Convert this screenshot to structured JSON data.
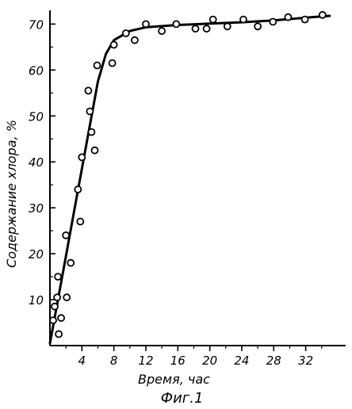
{
  "chart_data": {
    "type": "scatter",
    "xlabel": "Время, час",
    "ylabel": "Содержание хлора, %",
    "caption": "Фиг.1",
    "xlim": [
      0,
      37
    ],
    "ylim": [
      0,
      73
    ],
    "x_ticks": [
      4,
      8,
      12,
      16,
      20,
      24,
      28,
      32
    ],
    "y_ticks": [
      10,
      20,
      30,
      40,
      50,
      60,
      70
    ],
    "grid": false,
    "series": [
      {
        "kind": "points",
        "x": [
          0.4,
          0.6,
          0.9,
          1.0,
          1.1,
          1.4,
          2.0,
          2.1,
          2.6,
          3.5,
          3.8,
          4.0,
          4.8,
          5.0,
          5.2,
          5.6,
          5.9,
          7.8,
          8.0,
          9.5,
          10.6,
          12.0,
          14.0,
          15.8,
          18.2,
          19.6,
          20.4,
          22.2,
          24.2,
          26.0,
          27.9,
          29.8,
          31.9,
          34.1
        ],
        "y": [
          5.5,
          8.5,
          10.5,
          15.0,
          2.5,
          6.0,
          24.0,
          10.5,
          18.0,
          34.0,
          27.0,
          41.0,
          55.5,
          51.0,
          46.5,
          42.5,
          61.0,
          61.5,
          65.5,
          68.0,
          66.5,
          70.0,
          68.5,
          70.0,
          69.0,
          69.0,
          71.0,
          69.5,
          71.0,
          69.5,
          70.5,
          71.5,
          71.0,
          72.0
        ]
      },
      {
        "kind": "line",
        "x": [
          0,
          1,
          2,
          3,
          4,
          5,
          6,
          7,
          8,
          10,
          12,
          16,
          20,
          24,
          28,
          32,
          35
        ],
        "y": [
          0.5,
          10.0,
          19.5,
          29.0,
          38.5,
          48.0,
          57.5,
          63.5,
          66.5,
          68.5,
          69.3,
          69.8,
          70.1,
          70.4,
          70.8,
          71.4,
          71.8
        ]
      }
    ]
  }
}
